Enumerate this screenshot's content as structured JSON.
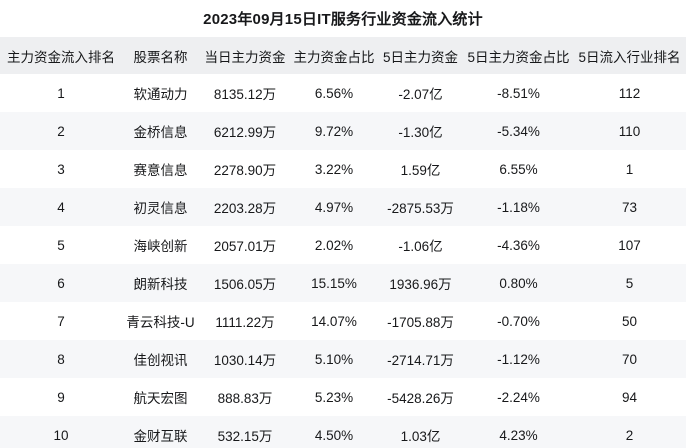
{
  "page": {
    "title": "2023年09月15日IT服务行业资金流入统计"
  },
  "colors": {
    "header_bg": "#eeeff1",
    "stripe_bg": "#f6f7f9",
    "text": "#17181a",
    "page_bg": "#ffffff"
  },
  "chart_data": {
    "type": "table",
    "title": "2023年09月15日IT服务行业资金流入统计",
    "columns": [
      "主力资金流入排名",
      "股票名称",
      "当日主力资金",
      "主力资金占比",
      "5日主力资金",
      "5日主力资金占比",
      "5日流入行业排名"
    ],
    "rows": [
      [
        "1",
        "软通动力",
        "8135.12万",
        "6.56%",
        "-2.07亿",
        "-8.51%",
        "112"
      ],
      [
        "2",
        "金桥信息",
        "6212.99万",
        "9.72%",
        "-1.30亿",
        "-5.34%",
        "110"
      ],
      [
        "3",
        "赛意信息",
        "2278.90万",
        "3.22%",
        "1.59亿",
        "6.55%",
        "1"
      ],
      [
        "4",
        "初灵信息",
        "2203.28万",
        "4.97%",
        "-2875.53万",
        "-1.18%",
        "73"
      ],
      [
        "5",
        "海峡创新",
        "2057.01万",
        "2.02%",
        "-1.06亿",
        "-4.36%",
        "107"
      ],
      [
        "6",
        "朗新科技",
        "1506.05万",
        "15.15%",
        "1936.96万",
        "0.80%",
        "5"
      ],
      [
        "7",
        "青云科技-U",
        "1111.22万",
        "14.07%",
        "-1705.88万",
        "-0.70%",
        "50"
      ],
      [
        "8",
        "佳创视讯",
        "1030.14万",
        "5.10%",
        "-2714.71万",
        "-1.12%",
        "70"
      ],
      [
        "9",
        "航天宏图",
        "888.83万",
        "5.23%",
        "-5428.26万",
        "-2.24%",
        "94"
      ],
      [
        "10",
        "金财互联",
        "532.15万",
        "4.50%",
        "1.03亿",
        "4.23%",
        "2"
      ]
    ],
    "layout": {
      "stripe_rows": true,
      "grid": false,
      "alignment": "center"
    }
  }
}
